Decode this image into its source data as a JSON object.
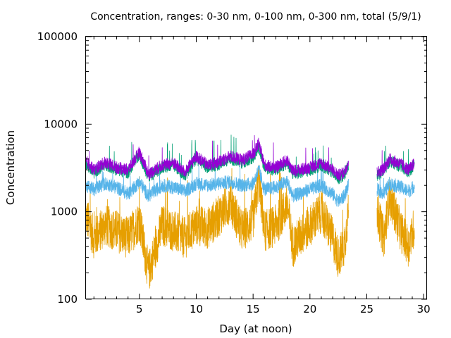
{
  "chart_data": {
    "type": "line",
    "title": "Concentration, ranges: 0-30 nm, 0-100 nm, 0-300 nm, total (5/9/1)",
    "xlabel": "Day (at noon)",
    "ylabel": "Concentration",
    "xlim": [
      0.3,
      30.3
    ],
    "ylim": [
      100,
      100000
    ],
    "yscale": "log",
    "grid": false,
    "legend": "none",
    "xticks": [
      5,
      10,
      15,
      20,
      25,
      30
    ],
    "xtick_labels": [
      "5",
      "10",
      "15",
      "20",
      "25",
      "30"
    ],
    "yticks": [
      100,
      1000,
      10000,
      100000
    ],
    "ytick_labels": [
      "100",
      "1000",
      "10000",
      "100000"
    ],
    "gap": [
      23.4,
      25.9
    ],
    "series": [
      {
        "color": "#e69f00",
        "x": [
          0.3,
          1,
          2,
          3,
          4,
          5,
          5.8,
          7,
          8,
          9,
          10,
          11,
          12,
          13,
          14,
          15,
          15.5,
          16,
          17,
          18,
          18.5,
          19,
          20,
          21,
          22,
          22.5,
          23,
          23.4,
          25.9,
          26.5,
          27,
          28,
          28.7,
          29.2
        ],
        "values": [
          900,
          500,
          700,
          600,
          500,
          800,
          200,
          700,
          600,
          500,
          700,
          650,
          900,
          1300,
          600,
          800,
          2400,
          600,
          700,
          1200,
          400,
          500,
          700,
          1000,
          500,
          300,
          400,
          1000,
          1000,
          500,
          1500,
          600,
          400,
          700
        ]
      },
      {
        "color": "#56b4e9",
        "x": [
          0.3,
          1,
          2,
          3,
          4,
          5,
          5.8,
          7,
          8,
          9,
          10,
          11,
          12,
          13,
          14,
          15,
          15.5,
          16,
          17,
          18,
          18.5,
          19,
          20,
          21,
          22,
          22.5,
          23,
          23.4,
          25.9,
          26.5,
          27,
          28,
          28.7,
          29.2
        ],
        "values": [
          2000,
          1800,
          2100,
          1900,
          1600,
          2200,
          1500,
          2000,
          1900,
          1700,
          2100,
          2000,
          2100,
          2200,
          2000,
          2100,
          3000,
          1800,
          1900,
          2200,
          1500,
          1600,
          1800,
          2000,
          1600,
          1300,
          1500,
          2000,
          1800,
          1600,
          2100,
          1900,
          1700,
          2000
        ]
      },
      {
        "color": "#009e73",
        "x": [
          0.3,
          1,
          2,
          3,
          4,
          5,
          5.8,
          7,
          8,
          9,
          10,
          11,
          12,
          13,
          14,
          15,
          15.5,
          16,
          17,
          18,
          18.5,
          19,
          20,
          21,
          22,
          22.5,
          23,
          23.4,
          25.9,
          26.5,
          27,
          28,
          28.7,
          29.2
        ],
        "values": [
          3500,
          2800,
          3500,
          3000,
          2800,
          4500,
          2500,
          3200,
          3400,
          2600,
          4000,
          3200,
          3500,
          4000,
          3600,
          4200,
          5500,
          3200,
          3000,
          3600,
          2700,
          2800,
          3000,
          3400,
          2800,
          2400,
          2600,
          3500,
          2600,
          2900,
          3800,
          3300,
          2800,
          3400
        ]
      },
      {
        "color": "#9400d3",
        "x": [
          0.3,
          1,
          2,
          3,
          4,
          5,
          5.8,
          7,
          8,
          9,
          10,
          11,
          12,
          13,
          14,
          15,
          15.5,
          16,
          17,
          18,
          18.5,
          19,
          20,
          21,
          22,
          22.5,
          23,
          23.4,
          25.9,
          26.5,
          27,
          28,
          28.7,
          29.2
        ],
        "values": [
          3800,
          3000,
          3700,
          3200,
          3000,
          4800,
          2700,
          3400,
          3600,
          2800,
          4300,
          3400,
          3700,
          4300,
          3900,
          4500,
          6000,
          3400,
          3200,
          3900,
          2900,
          3000,
          3200,
          3600,
          3000,
          2600,
          2800,
          3700,
          2800,
          3100,
          4000,
          3500,
          3000,
          3600
        ]
      }
    ]
  }
}
